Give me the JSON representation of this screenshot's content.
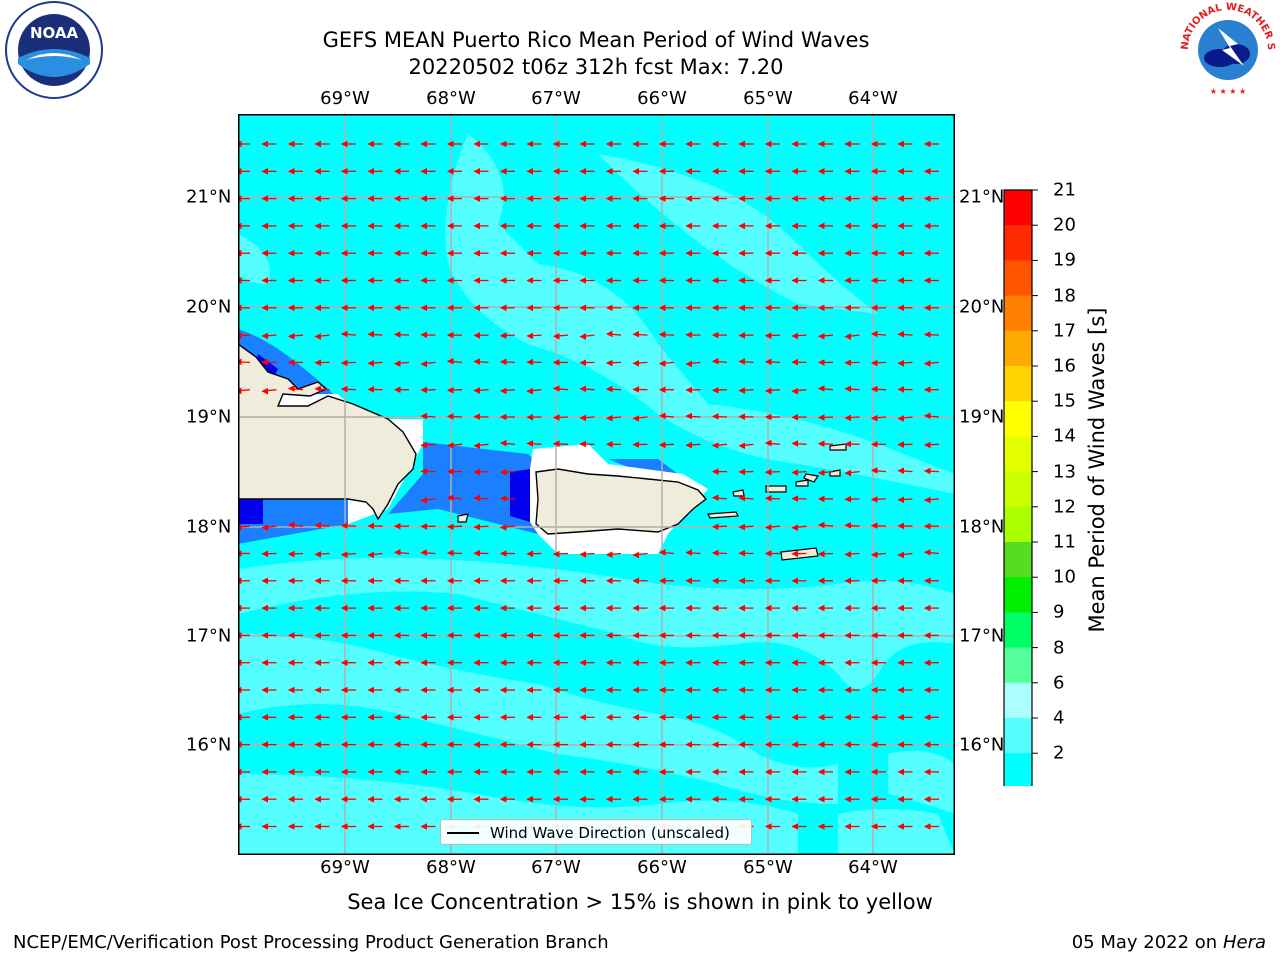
{
  "header": {
    "title_line1": "GEFS MEAN Puerto Rico Mean Period of Wind Waves",
    "title_line2": "20220502 t06z 312h fcst   Max: 7.20",
    "left_logo": "NOAA",
    "left_logo_ring": "NATIONAL OCEANIC AND ATMOSPHERIC ADMINISTRATION · U.S. DEPARTMENT OF COMMERCE",
    "right_logo_ring": "NATIONAL WEATHER SERVICE"
  },
  "map": {
    "lon_labels": [
      "69°W",
      "68°W",
      "67°W",
      "66°W",
      "65°W",
      "64°W"
    ],
    "lat_labels": [
      "21°N",
      "20°N",
      "19°N",
      "18°N",
      "17°N",
      "16°N"
    ],
    "lon_range": [
      -70.0,
      -63.25
    ],
    "lat_range": [
      15.0,
      21.75
    ],
    "legend_label": "Wind Wave Direction (unscaled)",
    "ocean_color": "#00ffff",
    "arrow_color": "#ff0000"
  },
  "colorbar": {
    "label": "Mean Period of Wind Waves [s]",
    "ticks": [
      "21",
      "20",
      "19",
      "18",
      "17",
      "16",
      "15",
      "14",
      "13",
      "12",
      "11",
      "10",
      "9",
      "8",
      "6",
      "4",
      "2"
    ],
    "colors": [
      "#ff0000",
      "#ff2a00",
      "#ff5500",
      "#ff8000",
      "#ffaa00",
      "#ffd400",
      "#ffff00",
      "#e6ff00",
      "#ccff00",
      "#aaff00",
      "#55dd22",
      "#00ee00",
      "#00ff66",
      "#55ff99",
      "#aaffff",
      "#55ffff",
      "#00ffff",
      "#0088ff",
      "#0000ee"
    ]
  },
  "footer": {
    "sea_ice_note": "Sea Ice Concentration > 15% is shown in pink to yellow",
    "branch": "NCEP/EMC/Verification Post Processing Product Generation Branch",
    "date": "05 May 2022 on",
    "machine": "Hera"
  }
}
